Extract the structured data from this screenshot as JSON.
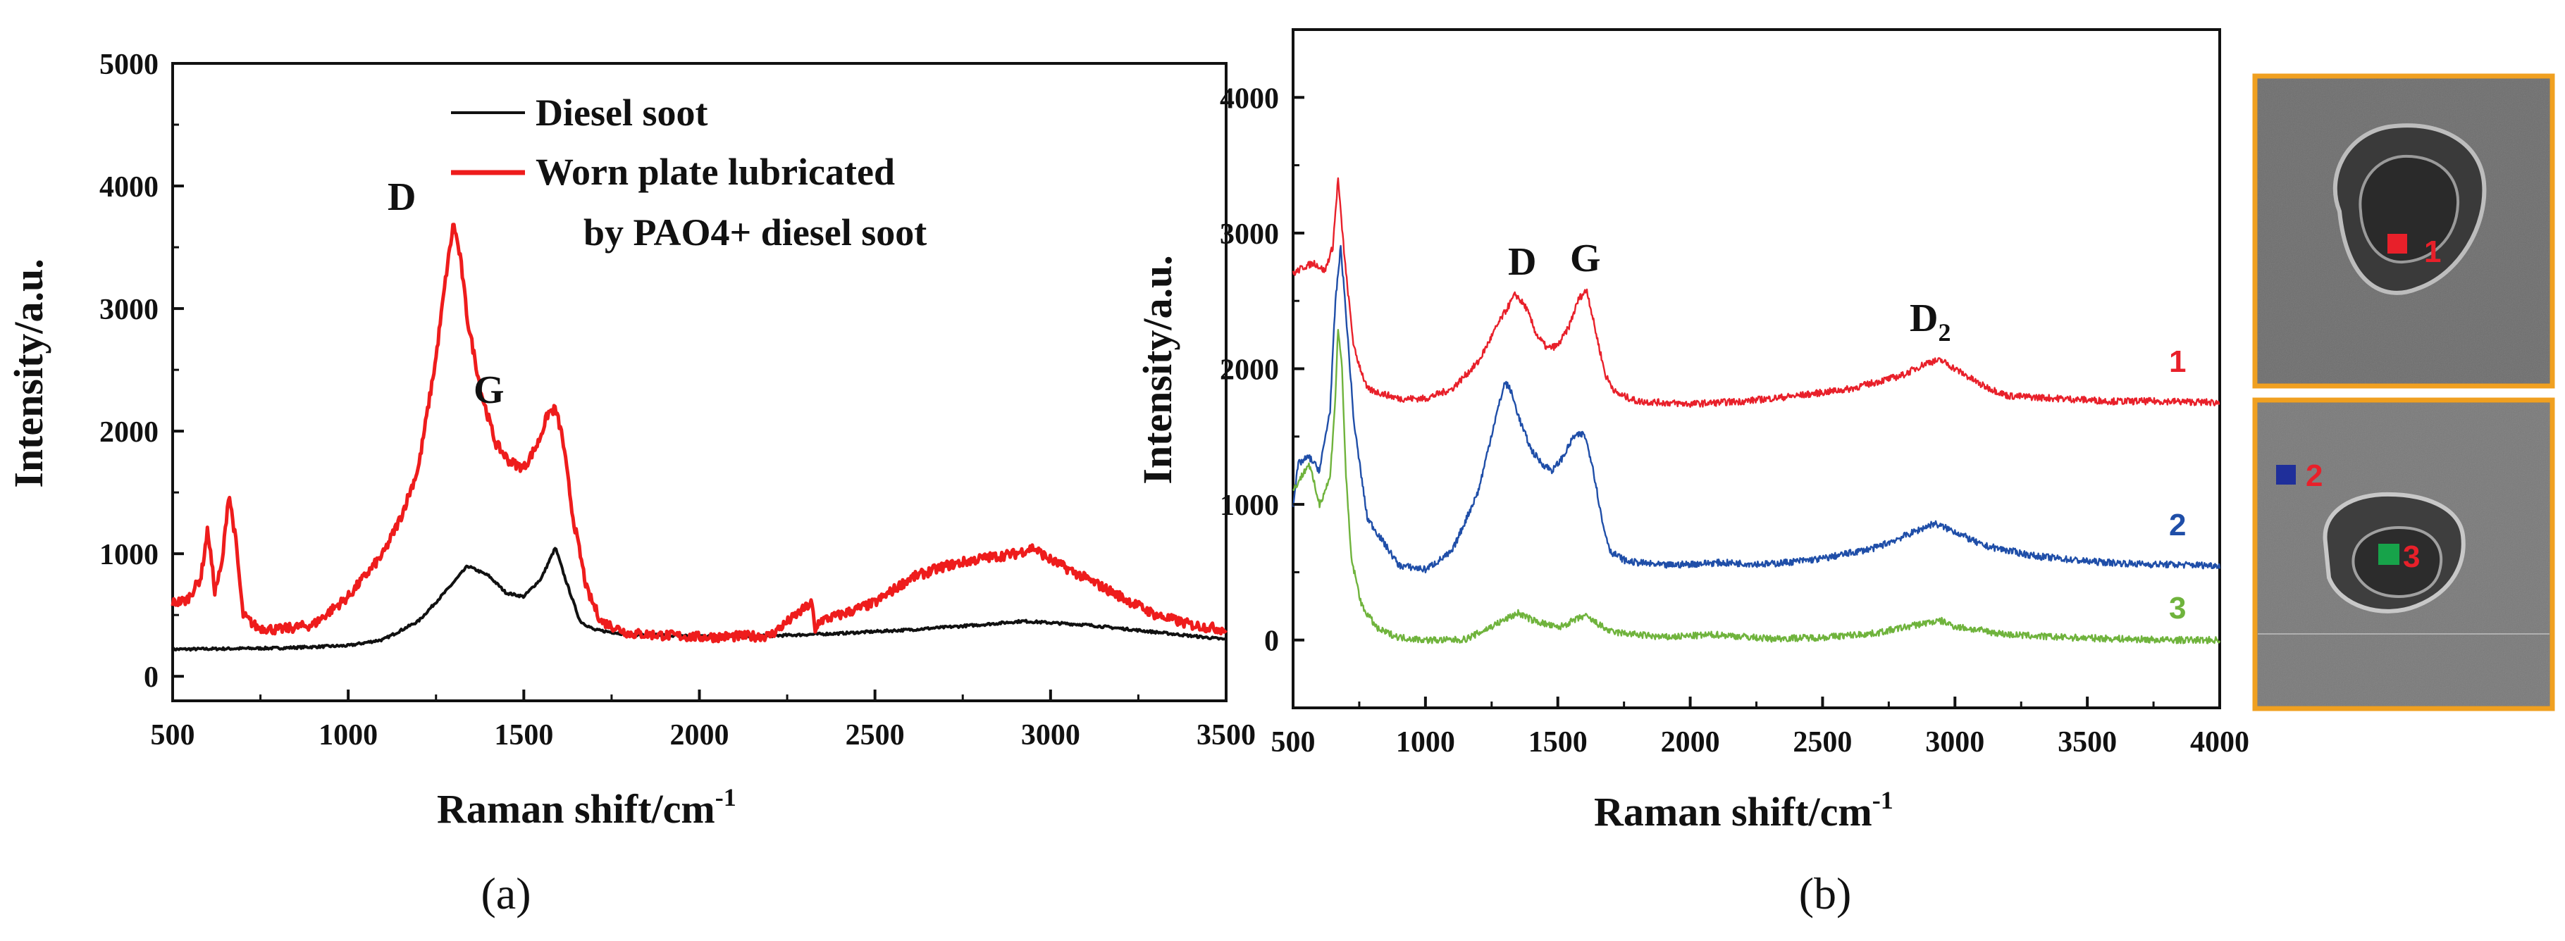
{
  "chart_data": [
    {
      "panel_label": "(a)",
      "type": "line",
      "xlabel": "Raman shift/cm",
      "xlabel_sup": "-1",
      "ylabel": "Intensity/a.u.",
      "xlim": [
        500,
        3500
      ],
      "ylim": [
        -200,
        5000
      ],
      "xticks": [
        "500",
        "1000",
        "1500",
        "2000",
        "2500",
        "3000",
        "3500"
      ],
      "yticks": [
        "0",
        "1000",
        "2000",
        "3000",
        "4000",
        "5000"
      ],
      "legend": [
        "Diesel soot",
        "Worn plate lubricated",
        "by PAO4+ diesel soot"
      ],
      "annotations": [
        {
          "text": "D",
          "x": 1300,
          "y": 3900
        },
        {
          "text": "G",
          "x": 1600,
          "y": 2320
        }
      ],
      "series": [
        {
          "name": "Diesel soot",
          "color": "#111111",
          "x": [
            500,
            800,
            1000,
            1100,
            1200,
            1280,
            1340,
            1400,
            1450,
            1500,
            1550,
            1590,
            1620,
            1660,
            1700,
            1800,
            2000,
            2200,
            2400,
            2600,
            2800,
            2920,
            3100,
            3300,
            3500
          ],
          "y": [
            220,
            230,
            250,
            300,
            450,
            700,
            900,
            820,
            680,
            650,
            800,
            1050,
            780,
            450,
            380,
            340,
            330,
            330,
            350,
            380,
            420,
            450,
            420,
            360,
            300
          ]
        },
        {
          "name": "Worn plate lubricated by PAO4+ diesel soot",
          "color": "#ee1c1c",
          "x": [
            500,
            540,
            580,
            600,
            620,
            640,
            660,
            680,
            700,
            740,
            800,
            900,
            1000,
            1100,
            1150,
            1200,
            1250,
            1280,
            1300,
            1320,
            1340,
            1380,
            1420,
            1460,
            1500,
            1540,
            1570,
            1590,
            1610,
            1640,
            1680,
            1720,
            1800,
            2000,
            2200,
            2320,
            2330,
            2340,
            2400,
            2500,
            2600,
            2700,
            2800,
            2900,
            2950,
            3000,
            3100,
            3200,
            3300,
            3400,
            3500
          ],
          "y": [
            600,
            620,
            800,
            1200,
            700,
            900,
            1500,
            1100,
            500,
            400,
            380,
            420,
            650,
            1000,
            1300,
            1700,
            2600,
            3300,
            3700,
            3400,
            2900,
            2300,
            1900,
            1750,
            1700,
            1900,
            2150,
            2180,
            1950,
            1300,
            700,
            450,
            350,
            320,
            330,
            600,
            350,
            450,
            500,
            600,
            800,
            900,
            960,
            1000,
            1050,
            950,
            800,
            650,
            500,
            420,
            380
          ]
        }
      ]
    },
    {
      "panel_label": "(b)",
      "type": "line",
      "xlabel": "Raman shift/cm",
      "xlabel_sup": "-1",
      "ylabel": "Intensity/a.u.",
      "xlim": [
        500,
        4000
      ],
      "ylim": [
        -500,
        4500
      ],
      "xticks": [
        "500",
        "1000",
        "1500",
        "2000",
        "2500",
        "3000",
        "3500",
        "4000"
      ],
      "yticks": [
        "0",
        "1000",
        "2000",
        "3000",
        "4000"
      ],
      "annotations": [
        {
          "text": "D",
          "x": 1320,
          "y": 2700
        },
        {
          "text": "G",
          "x": 1620,
          "y": 2720
        },
        {
          "text": "D",
          "sub": "2",
          "x": 2880,
          "y": 2300
        }
      ],
      "series": [
        {
          "name": "1",
          "color": "#e8202a",
          "x": [
            500,
            540,
            580,
            620,
            650,
            670,
            680,
            700,
            730,
            780,
            900,
            1000,
            1100,
            1200,
            1280,
            1340,
            1380,
            1420,
            1460,
            1500,
            1540,
            1580,
            1610,
            1640,
            1680,
            1720,
            1800,
            2000,
            2200,
            2400,
            2600,
            2800,
            2900,
            2950,
            3000,
            3100,
            3200,
            3400,
            3600,
            3800,
            4000
          ],
          "y": [
            2700,
            2750,
            2780,
            2720,
            2900,
            3400,
            3150,
            2700,
            2150,
            1850,
            1780,
            1780,
            1850,
            2050,
            2350,
            2550,
            2450,
            2250,
            2150,
            2170,
            2300,
            2520,
            2580,
            2300,
            1950,
            1820,
            1760,
            1740,
            1760,
            1800,
            1850,
            1950,
            2050,
            2060,
            2000,
            1880,
            1800,
            1780,
            1760,
            1760,
            1750
          ]
        },
        {
          "name": "2",
          "color": "#1f4ea8",
          "x": [
            500,
            520,
            560,
            600,
            640,
            660,
            680,
            700,
            730,
            780,
            900,
            1000,
            1100,
            1200,
            1260,
            1300,
            1320,
            1360,
            1400,
            1440,
            1480,
            1520,
            1560,
            1600,
            1630,
            1670,
            1700,
            1760,
            1900,
            2100,
            2300,
            2500,
            2700,
            2850,
            2920,
            3000,
            3100,
            3300,
            3500,
            3700,
            4000
          ],
          "y": [
            1000,
            1300,
            1350,
            1250,
            1700,
            2500,
            2900,
            2400,
            1600,
            900,
            550,
            520,
            650,
            1100,
            1600,
            1900,
            1850,
            1600,
            1400,
            1300,
            1250,
            1350,
            1500,
            1520,
            1300,
            850,
            650,
            580,
            550,
            570,
            560,
            600,
            680,
            800,
            860,
            800,
            700,
            620,
            580,
            560,
            550
          ]
        },
        {
          "name": "3",
          "color": "#6fb33c",
          "x": [
            500,
            530,
            560,
            600,
            640,
            660,
            670,
            685,
            700,
            720,
            760,
            820,
            900,
            1000,
            1100,
            1150,
            1200,
            1300,
            1350,
            1400,
            1500,
            1580,
            1600,
            1650,
            1700,
            1900,
            2100,
            2300,
            2500,
            2700,
            2900,
            2950,
            3000,
            3200,
            3400,
            3600,
            3800,
            4000
          ],
          "y": [
            1100,
            1200,
            1300,
            1000,
            1200,
            1800,
            2300,
            2000,
            1200,
            600,
            250,
            80,
            20,
            0,
            0,
            5,
            50,
            150,
            200,
            150,
            90,
            160,
            180,
            120,
            60,
            20,
            40,
            10,
            20,
            50,
            130,
            140,
            100,
            40,
            20,
            10,
            0,
            0
          ]
        }
      ],
      "series_labels": [
        "1",
        "2",
        "3"
      ],
      "inset_markers": [
        {
          "label": "1",
          "color": "#e8202a"
        },
        {
          "label": "2",
          "color": "#1f2f9a"
        },
        {
          "label": "3",
          "color": "#17a34a"
        }
      ]
    }
  ]
}
